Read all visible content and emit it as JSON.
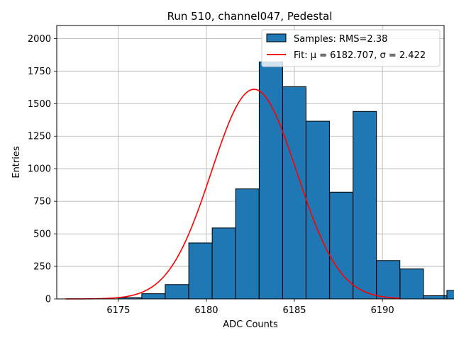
{
  "chart_data": {
    "type": "bar",
    "title": "Run 510, channel047, Pedestal",
    "xlabel": "ADC Counts",
    "ylabel": "Entries",
    "xlim": [
      6171.5,
      6193.5
    ],
    "ylim": [
      0,
      2100
    ],
    "x_ticks": [
      6175,
      6180,
      6185,
      6190
    ],
    "y_ticks": [
      0,
      250,
      500,
      750,
      1000,
      1250,
      1500,
      1750,
      2000
    ],
    "grid": true,
    "legend_position": "top-right",
    "bin_width": 1.33,
    "bins": [
      {
        "left": 6175.0,
        "count": 10
      },
      {
        "left": 6176.33,
        "count": 40
      },
      {
        "left": 6177.66,
        "count": 110
      },
      {
        "left": 6179.0,
        "count": 430
      },
      {
        "left": 6180.33,
        "count": 545
      },
      {
        "left": 6181.66,
        "count": 845
      },
      {
        "left": 6183.0,
        "count": 1820
      },
      {
        "left": 6184.33,
        "count": 1630
      },
      {
        "left": 6185.66,
        "count": 1365
      },
      {
        "left": 6187.0,
        "count": 820
      },
      {
        "left": 6188.33,
        "count": 1440
      },
      {
        "left": 6189.66,
        "count": 295
      },
      {
        "left": 6191.0,
        "count": 230
      },
      {
        "left": 6192.33,
        "count": 25
      },
      {
        "left": 6193.66,
        "count": 65
      }
    ],
    "series": [
      {
        "name": "Samples: RMS=2.38",
        "color": "#1f77b4",
        "kind": "histogram"
      },
      {
        "name": "Fit: μ = 6182.707, σ = 2.422",
        "color": "#ff0000",
        "kind": "gaussian",
        "mu": 6182.707,
        "sigma": 2.422,
        "amplitude": 1610,
        "x_range": [
          6172,
          6191
        ]
      }
    ]
  }
}
